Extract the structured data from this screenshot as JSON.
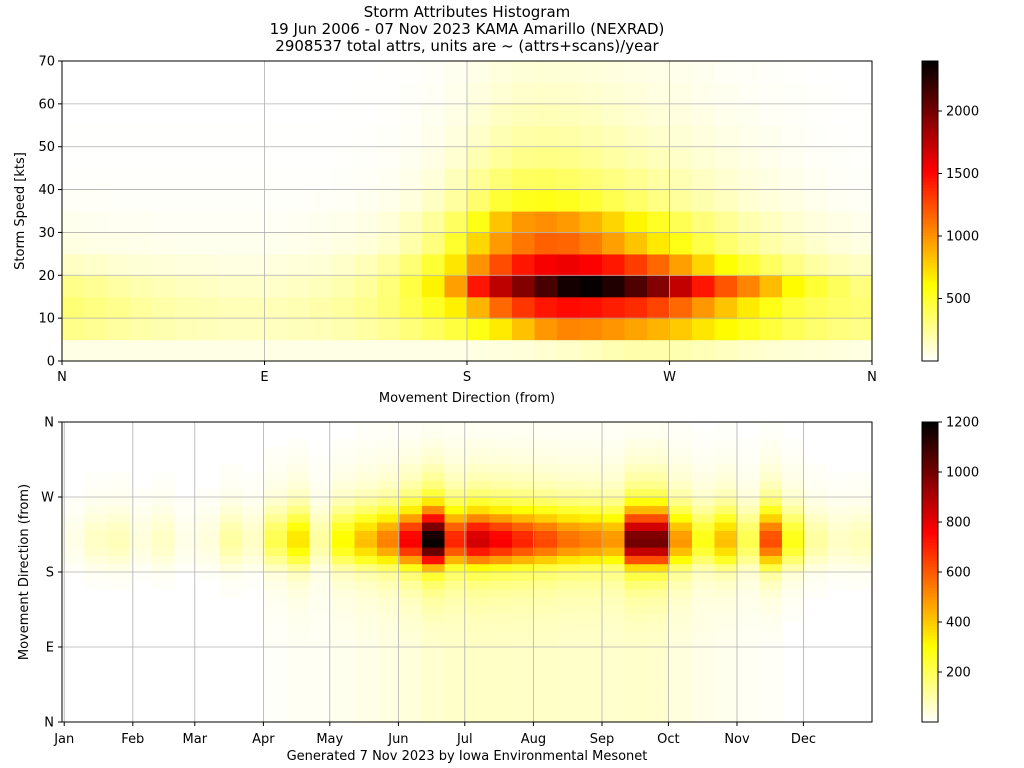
{
  "title": {
    "line1": "Storm Attributes Histogram",
    "line2": "19 Jun 2006 - 07 Nov 2023 KAMA Amarillo (NEXRAD)",
    "line3": "2908537 total attrs, units are ~ (attrs+scans)/year"
  },
  "footer": "Generated 7 Nov 2023 by Iowa Environmental Mesonet",
  "chart_data": [
    {
      "type": "heatmap",
      "xlabel": "Movement Direction (from)",
      "ylabel": "Storm Speed [kts]",
      "x_ticks": [
        "N",
        "E",
        "S",
        "W",
        "N"
      ],
      "x_tick_values": [
        0,
        90,
        180,
        270,
        360
      ],
      "xlim": [
        0,
        360
      ],
      "y_ticks": [
        "0",
        "10",
        "20",
        "30",
        "40",
        "50",
        "60",
        "70"
      ],
      "ylim": [
        0,
        70
      ],
      "colorbar_ticks": [
        "500",
        "1000",
        "1500",
        "2000"
      ],
      "colorbar_tick_values": [
        500,
        1000,
        1500,
        2000
      ],
      "colorbar_max": 2400,
      "colormap": "hot_r",
      "x_bin_degrees": 10,
      "speed_bins_kts": [
        0,
        5,
        10,
        15,
        20,
        25,
        30,
        35,
        40,
        45,
        50,
        55,
        60,
        65,
        70
      ],
      "values": [
        [
          60,
          60,
          60,
          60,
          60,
          60,
          60,
          60,
          60,
          60,
          60,
          60,
          60,
          60,
          60,
          60,
          60,
          60,
          70,
          80,
          90,
          110,
          130,
          150,
          180,
          200,
          200,
          190,
          170,
          150,
          130,
          110,
          100,
          90,
          80,
          70
        ],
        [
          280,
          260,
          230,
          210,
          190,
          170,
          160,
          150,
          150,
          150,
          160,
          170,
          190,
          220,
          260,
          320,
          380,
          460,
          560,
          680,
          830,
          980,
          1050,
          1030,
          990,
          940,
          880,
          800,
          700,
          620,
          540,
          470,
          400,
          350,
          310,
          290
        ],
        [
          330,
          300,
          270,
          240,
          210,
          190,
          180,
          170,
          170,
          170,
          180,
          200,
          230,
          270,
          330,
          420,
          520,
          660,
          880,
          1150,
          1330,
          1450,
          1490,
          1470,
          1420,
          1370,
          1280,
          1150,
          980,
          820,
          680,
          560,
          460,
          400,
          360,
          340
        ],
        [
          280,
          250,
          220,
          190,
          170,
          150,
          140,
          130,
          130,
          130,
          140,
          160,
          190,
          240,
          320,
          450,
          650,
          950,
          1450,
          1750,
          1950,
          2150,
          2330,
          2380,
          2290,
          2130,
          1950,
          1730,
          1450,
          1220,
          1050,
          850,
          620,
          480,
          390,
          310
        ],
        [
          140,
          130,
          110,
          100,
          90,
          80,
          80,
          70,
          70,
          80,
          90,
          100,
          130,
          170,
          230,
          330,
          480,
          700,
          1000,
          1250,
          1450,
          1550,
          1580,
          1530,
          1440,
          1310,
          1150,
          950,
          760,
          600,
          480,
          380,
          290,
          220,
          170,
          140
        ],
        [
          70,
          60,
          55,
          50,
          45,
          40,
          40,
          40,
          40,
          40,
          45,
          55,
          70,
          90,
          130,
          200,
          310,
          500,
          750,
          970,
          1100,
          1180,
          1160,
          1080,
          950,
          820,
          690,
          560,
          440,
          350,
          270,
          210,
          160,
          120,
          90,
          70
        ],
        [
          40,
          35,
          30,
          30,
          25,
          25,
          25,
          25,
          25,
          25,
          30,
          35,
          45,
          60,
          90,
          150,
          240,
          380,
          560,
          820,
          980,
          1010,
          970,
          880,
          760,
          640,
          520,
          410,
          320,
          250,
          190,
          150,
          110,
          80,
          60,
          45
        ],
        [
          20,
          20,
          15,
          15,
          15,
          15,
          15,
          15,
          15,
          15,
          15,
          20,
          25,
          35,
          50,
          80,
          140,
          230,
          350,
          480,
          540,
          560,
          540,
          490,
          420,
          360,
          300,
          240,
          190,
          150,
          110,
          85,
          65,
          45,
          30,
          25
        ],
        [
          10,
          10,
          10,
          10,
          10,
          10,
          10,
          10,
          10,
          10,
          10,
          10,
          15,
          20,
          30,
          50,
          90,
          160,
          250,
          330,
          380,
          390,
          370,
          340,
          300,
          260,
          220,
          180,
          140,
          110,
          80,
          60,
          45,
          30,
          20,
          15
        ],
        [
          5,
          5,
          5,
          5,
          5,
          5,
          5,
          5,
          5,
          5,
          5,
          5,
          10,
          15,
          20,
          35,
          60,
          110,
          180,
          240,
          280,
          290,
          280,
          250,
          220,
          190,
          160,
          130,
          100,
          80,
          60,
          45,
          30,
          20,
          15,
          10
        ],
        [
          5,
          5,
          5,
          5,
          5,
          5,
          5,
          5,
          5,
          5,
          5,
          5,
          5,
          10,
          15,
          25,
          45,
          80,
          130,
          180,
          210,
          220,
          210,
          190,
          170,
          140,
          120,
          100,
          80,
          60,
          45,
          35,
          25,
          15,
          10,
          5
        ],
        [
          0,
          0,
          0,
          0,
          0,
          0,
          0,
          0,
          0,
          0,
          0,
          0,
          5,
          5,
          10,
          20,
          35,
          60,
          100,
          140,
          160,
          170,
          160,
          150,
          130,
          110,
          90,
          75,
          60,
          45,
          35,
          25,
          20,
          10,
          5,
          5
        ],
        [
          0,
          0,
          0,
          0,
          0,
          0,
          0,
          0,
          0,
          0,
          0,
          0,
          0,
          5,
          5,
          15,
          25,
          45,
          75,
          105,
          125,
          130,
          125,
          115,
          100,
          85,
          70,
          60,
          45,
          35,
          25,
          20,
          15,
          10,
          5,
          0
        ],
        [
          0,
          0,
          0,
          0,
          0,
          0,
          0,
          0,
          0,
          0,
          0,
          0,
          0,
          0,
          5,
          10,
          20,
          35,
          55,
          80,
          95,
          100,
          95,
          85,
          75,
          65,
          55,
          45,
          35,
          25,
          20,
          15,
          10,
          5,
          0,
          0
        ]
      ]
    },
    {
      "type": "heatmap",
      "xlabel": "",
      "ylabel": "Movement Direction (from)",
      "x_ticks": [
        "Jan",
        "Feb",
        "Mar",
        "Apr",
        "May",
        "Jun",
        "Jul",
        "Aug",
        "Sep",
        "Oct",
        "Nov",
        "Dec"
      ],
      "x_tick_values": [
        1,
        32,
        60,
        91,
        121,
        152,
        182,
        213,
        244,
        274,
        305,
        335
      ],
      "xlim": [
        0,
        366
      ],
      "y_ticks": [
        "N",
        "E",
        "S",
        "W",
        "N"
      ],
      "y_tick_values": [
        0,
        90,
        180,
        270,
        360
      ],
      "ylim": [
        0,
        360
      ],
      "colorbar_ticks": [
        "200",
        "400",
        "600",
        "800",
        "1000",
        "1200"
      ],
      "colorbar_tick_values": [
        200,
        400,
        600,
        800,
        1000,
        1200
      ],
      "colorbar_max": 1200,
      "colormap": "hot_r",
      "day_bin_days": 10,
      "direction_bin_degrees": 10,
      "direction_profile": [
        5,
        5,
        5,
        5,
        5,
        5,
        5,
        5,
        5,
        8,
        10,
        15,
        20,
        30,
        40,
        60,
        90,
        140,
        300,
        520,
        720,
        840,
        820,
        700,
        520,
        360,
        240,
        160,
        110,
        80,
        60,
        40,
        30,
        20,
        10,
        8
      ],
      "weekly_activity": [
        0.02,
        0.05,
        0.06,
        0.03,
        0.05,
        0.02,
        0.03,
        0.08,
        0.05,
        0.15,
        0.25,
        0.08,
        0.22,
        0.3,
        0.38,
        0.55,
        0.85,
        0.5,
        0.6,
        0.55,
        0.5,
        0.45,
        0.4,
        0.38,
        0.35,
        0.72,
        0.72,
        0.35,
        0.2,
        0.3,
        0.15,
        0.45,
        0.2,
        0.08,
        0.05,
        0.06
      ],
      "summer_spread": [
        0,
        0,
        0,
        0,
        0,
        0,
        0,
        0,
        0,
        0.1,
        0.2,
        0.2,
        0.3,
        0.4,
        0.5,
        0.6,
        0.8,
        0.95,
        1,
        1,
        1,
        1,
        0.95,
        0.95,
        0.9,
        0.9,
        0.85,
        0.6,
        0.4,
        0.3,
        0.2,
        0.1,
        0,
        0,
        0,
        0
      ]
    }
  ]
}
